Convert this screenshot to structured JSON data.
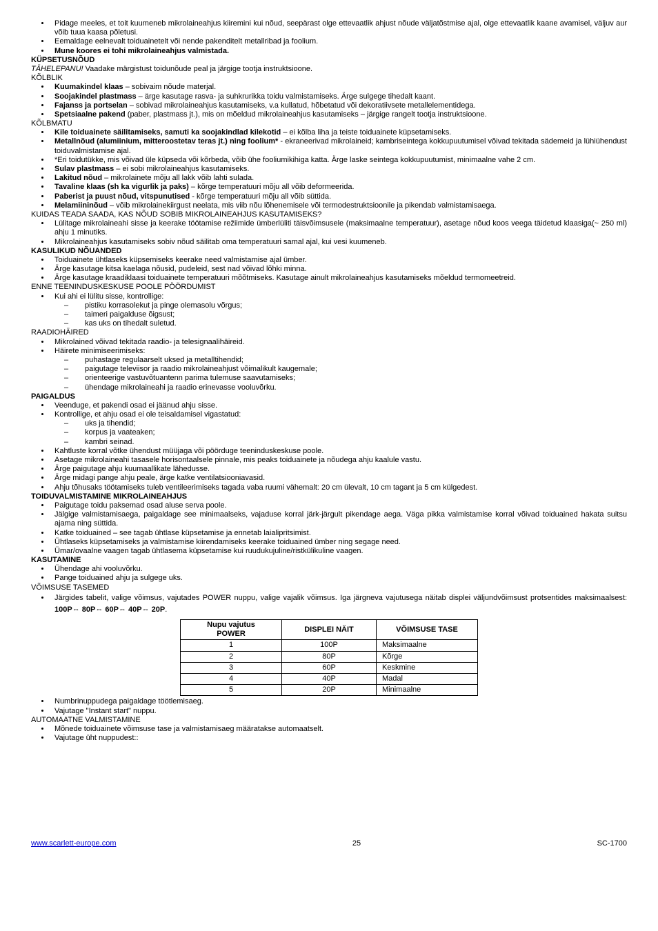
{
  "intro_bullets": [
    "Pidage meeles, et toit kuumeneb mikrolaineahjus kiiremini kui nõud, seepärast olge ettevaatlik ahjust nõude väljatõstmise ajal, olge ettevaatlik kaane avamisel, väljuv aur võib tuua kaasa põletusi.",
    "Eemaldage eelnevalt toiduainetelt või nende pakenditelt metallribad ja foolium."
  ],
  "intro_bold": "Mune koores ei tohi mikrolaineahjus valmistada.",
  "h_kupsetus": "KÜPSETUSNÕUD",
  "tahelepanu_label": "TÄHELEPANU!",
  "tahelepanu_text": "  Vaadake märgistust toidunõude peal ja järgige tootja instruktsioone.",
  "kolblik": "KÕLBLIK",
  "kolblik_items": [
    {
      "b": "Kuumakindel klaas",
      "t": " – sobivaim nõude materjal."
    },
    {
      "b": "Soojakindel plastmass",
      "t": " – ärge kasutage rasva- ja suhkrurikka toidu valmistamiseks. Ärge sulgege tihedalt kaant."
    },
    {
      "b": "Fajanss ja portselan",
      "t": " – sobivad mikrolaineahjus kasutamiseks, v.a kullatud, hõbetatud või dekoratiivsete metallelementidega."
    },
    {
      "b": "Spetsiaalne pakend",
      "t": " (paber, plastmass jt.), mis on mõeldud mikrolaineahjus kasutamiseks – järgige rangelt tootja instruktsioone."
    }
  ],
  "kolbmatu": "KÕLBMATU",
  "kolbmatu_items": [
    {
      "b": "Kile toiduainete säilitamiseks, samuti ka soojakindlad kilekotid",
      "t": " – ei kõlba liha ja teiste toiduainete küpsetamiseks."
    },
    {
      "b": "Metallnõud (alumiinium, mitteroostetav teras jt.) ning foolium*",
      "t": " - ekraneerivad mikrolaineid; kambriseintega kokkupuutumisel võivad tekitada sädemeid ja lühiühendust toiduvalmistamise ajal."
    },
    {
      "b": "",
      "t": "*Eri toidutükke, mis võivad üle küpseda või kõrbeda, võib ühe fooliumikihiga katta. Ärge laske seintega kokkupuutumist, minimaalne vahe 2 cm."
    },
    {
      "b": "Sulav plastmass",
      "t": " – ei sobi mikrolaineahjus kasutamiseks."
    },
    {
      "b": "Lakitud nõud",
      "t": " – mikrolainete mõju all lakk võib lahti sulada."
    },
    {
      "b": "Tavaline klaas (sh ka vigurlik ja paks)",
      "t": " – kõrge temperatuuri mõju all võib deformeerida."
    },
    {
      "b": "Paberist ja puust nõud, vitspunutised",
      "t": " - kõrge temperatuuri  mõju all võib süttida."
    },
    {
      "b": "Melamiininõud",
      "t": " – võib mikrolainekiirgust neelata, mis viib nõu lõhenemisele või termodestruktsioonile ja pikendab valmistamisaega."
    }
  ],
  "kuidas": "KUIDAS TEADA SAADA, KAS NÕUD SOBIB MIKROLAINEAHJUS KASUTAMISEKS?",
  "kuidas_items": [
    "Lülitage mikrolaineahi sisse ja keerake töötamise režiimide ümberlüliti täisvõimsusele (maksimaalne temperatuur), asetage nõud koos veega täidetud klaasiga(~ 250 ml) ahju 1 minutiks.",
    "Mikrolaineahjus kasutamiseks sobiv nõud säilitab oma temperatuuri samal ajal, kui vesi kuumeneb."
  ],
  "h_kasulikud": "KASULIKUD NÕUANDED",
  "kasulikud_items": [
    "Toiduainete ühtlaseks küpsemiseks keerake need valmistamise ajal  ümber.",
    "Ärge kasutage kitsa kaelaga nõusid, pudeleid, sest nad võivad lõhki minna.",
    "Ärge kasutage kraadiklaasi toiduainete temperatuuri mõõtmiseks. Kasutage ainult mikrolaineahjus kasutamiseks mõeldud termomeetreid."
  ],
  "enne": "ENNE TEENINDUSKESKUSE POOLE PÖÖRDUMIST",
  "enne_lead": "Kui ahi ei lülitu sisse, kontrollige:",
  "enne_sub": [
    "pistiku korrasolekut ja pinge olemasolu võrgus;",
    "taimeri paigalduse õigsust;",
    "kas uks on tihedalt suletud."
  ],
  "raadio": "RAADIOHÄIRED",
  "raadio_items": [
    "Mikrolained võivad tekitada raadio- ja telesignaalihäireid.",
    "Häirete minimiseerimiseks:"
  ],
  "raadio_sub": [
    "puhastage regulaarselt uksed ja metalltihendid;",
    "paigutage televiisor ja raadio mikrolaineahjust võimalikult kaugemale;",
    "orienteerige vastuvõtuantenn parima tulemuse saavutamiseks;",
    "ühendage mikrolaineahi ja raadio erinevasse vooluvõrku."
  ],
  "h_paigaldus": "PAIGALDUS",
  "paigaldus_items": [
    "Veenduge, et pakendi osad ei jäänud ahju sisse.",
    "Kontrollige, et ahju osad  ei ole teisaldamisel vigastatud:"
  ],
  "paigaldus_sub": [
    "uks ja  tihendid;",
    "korpus ja vaateaken;",
    "kambri seinad."
  ],
  "paigaldus_items2": [
    "Kahtluste korral võtke ühendust müüjaga või pöörduge teeninduskeskuse poole.",
    "Asetage mikrolaineahi tasasele horisontaalsele pinnale, mis peaks toiduainete ja nõudega ahju kaalule vastu.",
    "Ärge paigutage ahju kuumaallikate lähedusse.",
    "Ärge midagi pange ahju peale, ärge katke ventilatsiooniavasid.",
    "Ahju tõhusaks töötamiseks tuleb ventileerimiseks tagada vaba ruumi vähemalt: 20 cm ülevalt, 10 cm tagant ja 5 cm külgedest."
  ],
  "h_toidu": "TOIDUVALMISTAMINE MIKROLAINEAHJUS",
  "toidu_items": [
    "Paigutage toidu paksemad osad aluse serva poole.",
    "Jälgige valmistamisaega, paigaldage see minimaalseks, vajaduse korral järk-järgult pikendage aega. Väga pikka valmistamise korral võivad toiduained hakata suitsu ajama ning süttida.",
    "Katke toiduained – see tagab ühtlase küpsetamise ja ennetab laialipritsimist.",
    "Ühtlaseks küpsetamiseks ja valmistamise kiirendamiseks keerake toiduained ümber ning segage need.",
    "Ümar/ovaalne vaagen tagab ühtlasema küpsetamise kui ruudukujuline/ristkülikuline vaagen."
  ],
  "h_kasutamine": "KASUTAMINE",
  "kasutamine_items": [
    "Ühendage ahi vooluvõrku.",
    "Pange toiduained ahju ja sulgege uks."
  ],
  "voimsuse": "VÕIMSUSE TASEMED",
  "voimsuse_lead_a": "Järgides tabelit, valige võimsus, vajutades POWER nuppu, valige vajalik võimsus. Iga järgneva vajutusega näitab displei väljundvõimsust protsentides maksimaalsest: ",
  "voimsuse_lead_b": "100P⇔ 80P⇔ 60P⇔ 40P⇔ 20P",
  "table": {
    "h1a": "Nupu vajutus",
    "h1b": "POWER",
    "h2": "DISPLEI NÄIT",
    "h3": "VÕIMSUSE TASE",
    "rows": [
      [
        "1",
        "100P",
        "Maksimaalne"
      ],
      [
        "2",
        "80P",
        "Kõrge"
      ],
      [
        "3",
        "60P",
        "Keskmine"
      ],
      [
        "4",
        "40P",
        "Madal"
      ],
      [
        "5",
        "20P",
        "Minimaalne"
      ]
    ]
  },
  "after_items": [
    "Numbrinuppudega paigaldage töötlemisaeg.",
    "Vajutage \"Instant start\" nuppu."
  ],
  "auto": "AUTOMAATNE VALMISTAMINE",
  "auto_items": [
    "Mõnede toiduainete võimsuse tase ja valmistamisaeg määratakse automaatselt.",
    "Vajutage üht nuppudest::"
  ],
  "footer_url": "www.scarlett-europe.com",
  "footer_page": "25",
  "footer_model": "SC-1700"
}
